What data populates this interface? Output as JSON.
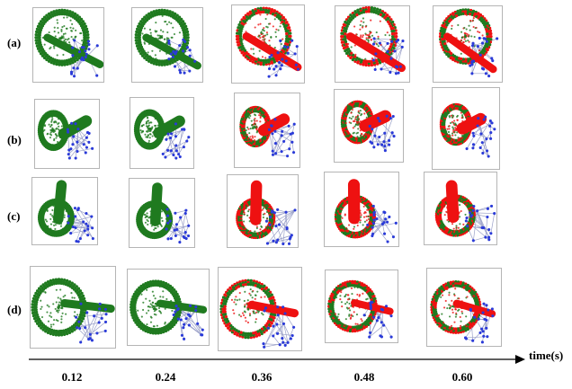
{
  "rows": [
    "(a)",
    "(b)",
    "(c)",
    "(d)"
  ],
  "times": [
    "0.12",
    "0.24",
    "0.36",
    "0.48",
    "0.60"
  ],
  "axis_label": "time(s)",
  "colors": {
    "green": "#1f7a1f",
    "red": "#ee1111",
    "blue": "#2a3ad8",
    "line": "#9aa0c8",
    "frame": "#b5b5b5"
  },
  "red_from_column": 2
}
